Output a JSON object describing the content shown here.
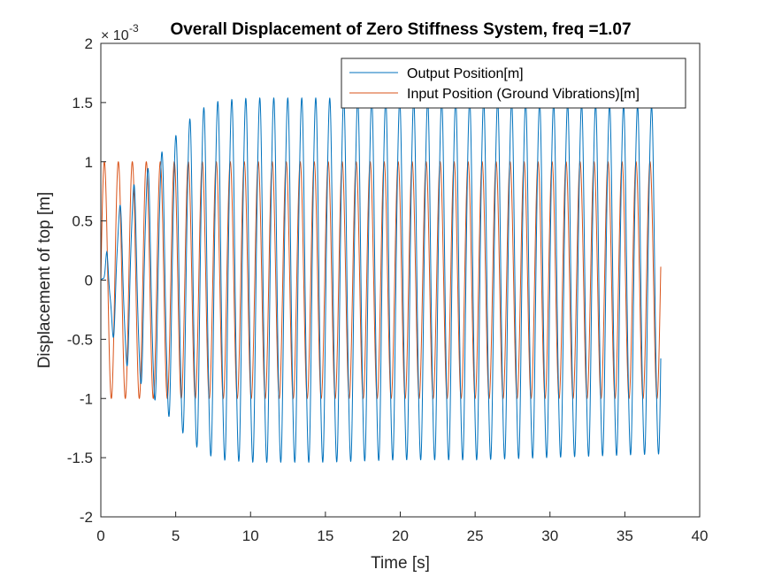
{
  "chart_data": {
    "type": "line",
    "title": "Overall Displacement of Zero Stiffness System, freq =1.07",
    "xlabel": "Time [s]",
    "ylabel": "Displacement of top [m]",
    "y_exponent_label": "10",
    "y_exponent_power": "-3",
    "y_exponent_prefix": "×",
    "xlim": [
      0,
      40
    ],
    "ylim": [
      -2,
      2
    ],
    "x_ticks": [
      0,
      5,
      10,
      15,
      20,
      25,
      30,
      35,
      40
    ],
    "y_ticks": [
      -2,
      -1.5,
      -1,
      -0.5,
      0,
      0.5,
      1,
      1.5,
      2
    ],
    "grid": false,
    "legend_position": "top-right",
    "series": [
      {
        "name": "Output Position[m]",
        "color": "#0072BD",
        "frequency_hz": 1.07,
        "t_end": 37.4,
        "peak_amplitude": [
          [
            0,
            0.0
          ],
          [
            1,
            0.55
          ],
          [
            2,
            0.75
          ],
          [
            3,
            0.9
          ],
          [
            4,
            1.05
          ],
          [
            5,
            1.2
          ],
          [
            6,
            1.35
          ],
          [
            7,
            1.45
          ],
          [
            8,
            1.5
          ],
          [
            10,
            1.52
          ],
          [
            12,
            1.52
          ],
          [
            15,
            1.52
          ],
          [
            20,
            1.5
          ],
          [
            25,
            1.5
          ],
          [
            30,
            1.48
          ],
          [
            37.4,
            1.45
          ]
        ]
      },
      {
        "name": "Input Position (Ground Vibrations)[m]",
        "color": "#D95319",
        "frequency_hz": 1.07,
        "t_end": 37.4,
        "amplitude": 1.0
      }
    ]
  }
}
